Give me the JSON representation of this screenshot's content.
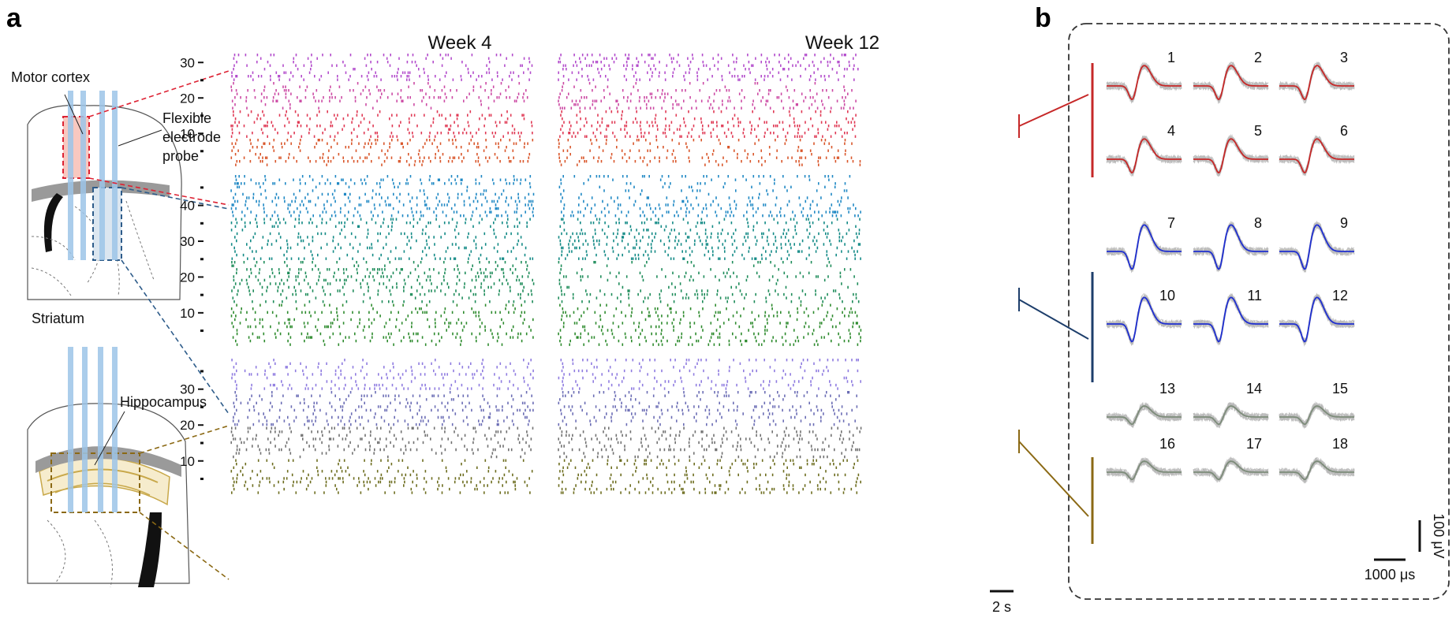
{
  "figure": {
    "panel_a_label": "a",
    "panel_b_label": "b",
    "brain_labels": {
      "motor_cortex": "Motor cortex",
      "probe": [
        "Flexible",
        "electrode",
        "probe"
      ],
      "striatum": "Striatum",
      "hippocampus": "Hippocampus"
    },
    "raster": {
      "col_titles": [
        "Week 4",
        "Week 12"
      ],
      "scale_bar": "2 s",
      "blocks": [
        {
          "ticks": [
            "30",
            "20",
            "10"
          ],
          "n_rows": 32,
          "colors": [
            "#d9562a",
            "#e03a55",
            "#cc4aa4",
            "#b34ccc"
          ]
        },
        {
          "ticks": [
            "40",
            "30",
            "20",
            "10"
          ],
          "n_rows": 48,
          "colors": [
            "#2e8b2e",
            "#1e8c5a",
            "#138a86",
            "#1f88c4"
          ]
        },
        {
          "ticks": [
            "30",
            "20",
            "10"
          ],
          "n_rows": 38,
          "colors": [
            "#6d6d1f",
            "#717171",
            "#6b6db5",
            "#8f7ce0"
          ]
        }
      ]
    },
    "waveforms": {
      "unit_labels": [
        "1",
        "2",
        "3",
        "4",
        "5",
        "6",
        "7",
        "8",
        "9",
        "10",
        "11",
        "12",
        "13",
        "14",
        "15",
        "16",
        "17",
        "18"
      ],
      "colors": [
        "#c62828",
        "#1f2fd0",
        "#7d8c7a"
      ],
      "bracket_colors": [
        "#c62828",
        "#1d3e6b",
        "#8b6914"
      ],
      "scale_voltage": "100 μV",
      "scale_time": "1000 μs"
    }
  }
}
